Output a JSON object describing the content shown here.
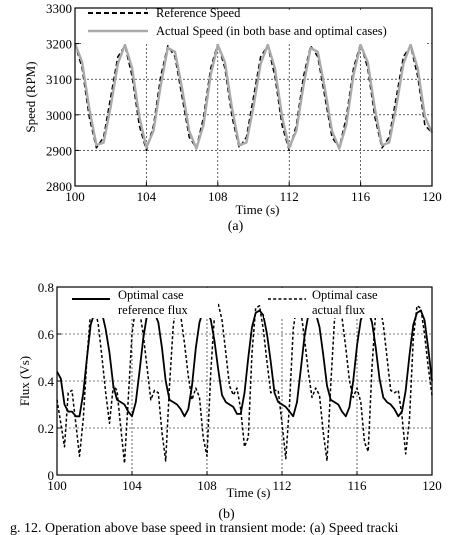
{
  "chart_data": [
    {
      "type": "line",
      "panel_label": "(a)",
      "xlabel": "Time (s)",
      "ylabel": "Speed (RPM)",
      "xlim": [
        100,
        120
      ],
      "ylim": [
        2800,
        3300
      ],
      "xticks": [
        100,
        104,
        108,
        112,
        116,
        120
      ],
      "yticks": [
        2800,
        2900,
        3000,
        3100,
        3200,
        3300
      ],
      "grid": true,
      "legend_position": "top",
      "series": [
        {
          "name": "Reference Speed",
          "style": "dashed",
          "color": "#000000",
          "x": [
            100,
            100.4,
            100.8,
            101.2,
            101.6,
            102,
            102.4,
            102.8,
            103.2,
            103.6,
            104,
            104.4,
            104.8,
            105.2,
            105.6,
            106,
            106.4,
            106.8,
            107.2,
            107.6,
            108,
            108.4,
            108.8,
            109.2,
            109.6,
            110,
            110.4,
            110.8,
            111.2,
            111.6,
            112,
            112.4,
            112.8,
            113.2,
            113.6,
            114,
            114.4,
            114.8,
            115.2,
            115.6,
            116,
            116.4,
            116.8,
            117.2,
            117.6,
            118,
            118.4,
            118.8,
            119.2,
            119.6,
            120
          ],
          "y": [
            3200,
            3131,
            2993,
            2907,
            2937,
            3050,
            3163,
            3194,
            3108,
            2970,
            2900,
            2970,
            3108,
            3194,
            3163,
            3050,
            2937,
            2907,
            2993,
            3131,
            3200,
            3131,
            2993,
            2907,
            2937,
            3050,
            3163,
            3194,
            3108,
            2970,
            2900,
            2970,
            3108,
            3194,
            3163,
            3050,
            2937,
            2907,
            2993,
            3131,
            3200,
            3131,
            2993,
            2907,
            2937,
            3050,
            3163,
            3194,
            3108,
            2970,
            2950
          ]
        },
        {
          "name": "Actual Speed (in both base and optimal cases)",
          "style": "solid",
          "color": "#aaaaaa",
          "x": [
            100,
            100.4,
            100.8,
            101.2,
            101.6,
            102,
            102.4,
            102.8,
            103.2,
            103.6,
            104,
            104.4,
            104.8,
            105.2,
            105.6,
            106,
            106.4,
            106.8,
            107.2,
            107.6,
            108,
            108.4,
            108.8,
            109.2,
            109.6,
            110,
            110.4,
            110.8,
            111.2,
            111.6,
            112,
            112.4,
            112.8,
            113.2,
            113.6,
            114,
            114.4,
            114.8,
            115.2,
            115.6,
            116,
            116.4,
            116.8,
            117.2,
            117.6,
            118,
            118.4,
            118.8,
            119.2,
            119.6,
            120
          ],
          "y": [
            3200,
            3148,
            3017,
            2915,
            2922,
            3023,
            3143,
            3197,
            3131,
            2995,
            2908,
            2955,
            3082,
            3188,
            3177,
            3074,
            2955,
            2905,
            2972,
            3112,
            3196,
            3148,
            3017,
            2915,
            2922,
            3023,
            3143,
            3197,
            3131,
            2995,
            2908,
            2955,
            3082,
            3188,
            3177,
            3074,
            2955,
            2905,
            2972,
            3112,
            3196,
            3148,
            3017,
            2915,
            2922,
            3023,
            3143,
            3197,
            3131,
            2995,
            2950
          ]
        }
      ]
    },
    {
      "type": "line",
      "panel_label": "(b)",
      "xlabel": "Time (s)",
      "ylabel": "Flux (Vs)",
      "xlim": [
        100,
        120
      ],
      "ylim": [
        0,
        0.8
      ],
      "xticks": [
        100,
        104,
        108,
        112,
        116,
        120
      ],
      "yticks": [
        0,
        0.2,
        0.4,
        0.6,
        0.8
      ],
      "grid": true,
      "legend_position": "top",
      "series": [
        {
          "name": "Optimal case reference flux",
          "legend_lines": [
            "Optimal case",
            "reference flux"
          ],
          "style": "solid",
          "color": "#000000",
          "x": [
            100,
            100.2,
            100.4,
            100.6,
            100.8,
            101,
            101.2,
            101.4,
            101.6,
            101.8,
            102,
            102.2,
            102.4,
            102.6,
            102.8,
            103,
            103.2,
            103.4,
            103.6,
            103.8,
            104,
            104.2,
            104.4,
            104.6,
            104.8,
            105,
            105.2,
            105.4,
            105.6,
            105.8,
            106,
            106.2,
            106.4,
            106.6,
            106.8,
            107,
            107.2,
            107.4,
            107.6,
            107.8,
            108,
            108.2,
            108.4,
            108.6,
            108.8,
            109,
            109.2,
            109.4,
            109.6,
            109.8,
            110,
            110.2,
            110.4,
            110.6,
            110.8,
            111,
            111.2,
            111.4,
            111.6,
            111.8,
            112,
            112.2,
            112.4,
            112.6,
            112.8,
            113,
            113.2,
            113.4,
            113.6,
            113.8,
            114,
            114.2,
            114.4,
            114.6,
            114.8,
            115,
            115.2,
            115.4,
            115.6,
            115.8,
            116,
            116.2,
            116.4,
            116.6,
            116.8,
            117,
            117.2,
            117.4,
            117.6,
            117.8,
            118,
            118.2,
            118.4,
            118.6,
            118.8,
            119,
            119.2,
            119.4,
            119.6,
            119.8,
            120
          ],
          "y": [
            0.44,
            0.41,
            0.3,
            0.27,
            0.27,
            0.25,
            0.25,
            0.35,
            0.5,
            0.64,
            0.69,
            0.7,
            0.69,
            0.62,
            0.52,
            0.38,
            0.32,
            0.31,
            0.3,
            0.27,
            0.25,
            0.31,
            0.44,
            0.58,
            0.68,
            0.7,
            0.69,
            0.65,
            0.54,
            0.4,
            0.32,
            0.31,
            0.3,
            0.28,
            0.25,
            0.28,
            0.38,
            0.54,
            0.65,
            0.7,
            0.7,
            0.66,
            0.57,
            0.45,
            0.34,
            0.31,
            0.3,
            0.29,
            0.26,
            0.26,
            0.35,
            0.5,
            0.63,
            0.69,
            0.7,
            0.68,
            0.6,
            0.48,
            0.35,
            0.31,
            0.3,
            0.29,
            0.27,
            0.25,
            0.31,
            0.45,
            0.59,
            0.68,
            0.7,
            0.69,
            0.63,
            0.51,
            0.38,
            0.32,
            0.31,
            0.3,
            0.27,
            0.25,
            0.29,
            0.4,
            0.55,
            0.66,
            0.7,
            0.7,
            0.65,
            0.54,
            0.41,
            0.33,
            0.31,
            0.3,
            0.28,
            0.25,
            0.27,
            0.36,
            0.51,
            0.64,
            0.69,
            0.7,
            0.66,
            0.54,
            0.4
          ]
        },
        {
          "name": "Optimal case actual flux",
          "legend_lines": [
            "Optimal case",
            "actual flux"
          ],
          "style": "dotted",
          "color": "#000000",
          "x": [
            100,
            100.2,
            100.4,
            100.6,
            100.8,
            101,
            101.2,
            101.4,
            101.6,
            101.8,
            102,
            102.2,
            102.4,
            102.6,
            102.8,
            103,
            103.2,
            103.4,
            103.6,
            103.8,
            104,
            104.2,
            104.4,
            104.6,
            104.8,
            105,
            105.2,
            105.4,
            105.6,
            105.8,
            106,
            106.2,
            106.4,
            106.6,
            106.8,
            107,
            107.2,
            107.4,
            107.6,
            107.8,
            108,
            108.2,
            108.4,
            108.6,
            108.8,
            109,
            109.2,
            109.4,
            109.6,
            109.8,
            110,
            110.2,
            110.4,
            110.6,
            110.8,
            111,
            111.2,
            111.4,
            111.6,
            111.8,
            112,
            112.2,
            112.4,
            112.6,
            112.8,
            113,
            113.2,
            113.4,
            113.6,
            113.8,
            114,
            114.2,
            114.4,
            114.6,
            114.8,
            115,
            115.2,
            115.4,
            115.6,
            115.8,
            116,
            116.2,
            116.4,
            116.6,
            116.8,
            117,
            117.2,
            117.4,
            117.6,
            117.8,
            118,
            118.2,
            118.4,
            118.6,
            118.8,
            119,
            119.2,
            119.4,
            119.6,
            119.8,
            120
          ],
          "y": [
            0.32,
            0.22,
            0.12,
            0.35,
            0.36,
            0.22,
            0.08,
            0.24,
            0.5,
            0.7,
            0.72,
            0.64,
            0.5,
            0.35,
            0.22,
            0.38,
            0.36,
            0.2,
            0.05,
            0.32,
            0.6,
            0.72,
            0.7,
            0.6,
            0.46,
            0.32,
            0.36,
            0.35,
            0.18,
            0.06,
            0.38,
            0.64,
            0.73,
            0.68,
            0.56,
            0.42,
            0.32,
            0.37,
            0.33,
            0.16,
            0.08,
            0.44,
            0.68,
            0.73,
            0.66,
            0.52,
            0.38,
            0.34,
            0.37,
            0.28,
            0.12,
            0.16,
            0.52,
            0.71,
            0.72,
            0.62,
            0.48,
            0.35,
            0.36,
            0.36,
            0.22,
            0.07,
            0.3,
            0.62,
            0.73,
            0.7,
            0.58,
            0.44,
            0.33,
            0.37,
            0.34,
            0.18,
            0.06,
            0.38,
            0.66,
            0.73,
            0.67,
            0.54,
            0.4,
            0.33,
            0.37,
            0.31,
            0.14,
            0.1,
            0.46,
            0.7,
            0.73,
            0.64,
            0.5,
            0.36,
            0.35,
            0.36,
            0.25,
            0.09,
            0.24,
            0.58,
            0.72,
            0.71,
            0.6,
            0.46,
            0.34
          ]
        }
      ]
    }
  ],
  "caption": "g. 12. Operation above base speed in transient mode: (a) Speed tracki"
}
